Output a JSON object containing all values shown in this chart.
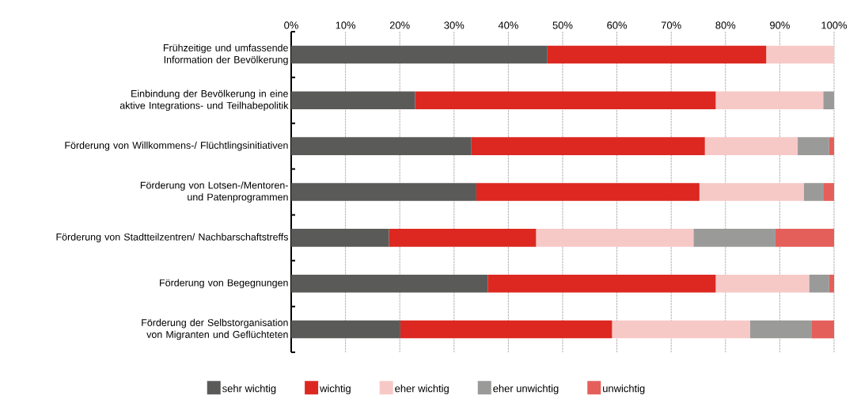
{
  "chart_data": {
    "type": "bar",
    "orientation": "horizontal",
    "stacked": true,
    "categories": [
      "Frühzeitige und umfassende Information der Bevölkerung",
      "Einbindung der Bevölkerung in eine aktive Integrations- und Teilhabepolitik",
      "Förderung von Willkommens-/ Flüchtlingsinitiativen",
      "Förderung von Lotsen-/Mentoren- und Patenprogrammen",
      "Förderung von Stadtteilzentren/ Nachbarschaftstreffs",
      "Förderung von Begegnungen",
      "Förderung der Selbstorganisation von Migranten und Geflüchteten"
    ],
    "series": [
      {
        "name": "sehr wichtig",
        "color": "#5a5a59",
        "values": [
          47.2,
          22.8,
          33.2,
          34.1,
          18.0,
          36.2,
          20.1
        ]
      },
      {
        "name": "wichtig",
        "color": "#dc2820",
        "values": [
          40.3,
          55.4,
          43.0,
          41.1,
          27.1,
          42.0,
          39.0
        ]
      },
      {
        "name": "eher wichtig",
        "color": "#f6c9c7",
        "values": [
          12.5,
          19.8,
          17.1,
          19.2,
          29.0,
          17.2,
          25.4
        ]
      },
      {
        "name": "eher unwichtig",
        "color": "#9a9a99",
        "values": [
          0,
          2.0,
          5.8,
          3.7,
          15.1,
          3.7,
          11.3
        ]
      },
      {
        "name": "unwichtig",
        "color": "#e55f5a",
        "values": [
          0,
          0,
          0.9,
          1.9,
          10.8,
          0.9,
          4.2
        ]
      }
    ],
    "xlim": [
      0,
      100
    ],
    "xticks": [
      {
        "value": 0,
        "label": "0%"
      },
      {
        "value": 10,
        "label": "10%"
      },
      {
        "value": 20,
        "label": "20%"
      },
      {
        "value": 30,
        "label": "30%"
      },
      {
        "value": 40,
        "label": "40%"
      },
      {
        "value": 50,
        "label": "50%"
      },
      {
        "value": 60,
        "label": "60%"
      },
      {
        "value": 70,
        "label": "70%"
      },
      {
        "value": 80,
        "label": "80%"
      },
      {
        "value": 90,
        "label": "90%"
      },
      {
        "value": 100,
        "label": "100%"
      }
    ],
    "grid": "x",
    "legend": "bottom"
  }
}
